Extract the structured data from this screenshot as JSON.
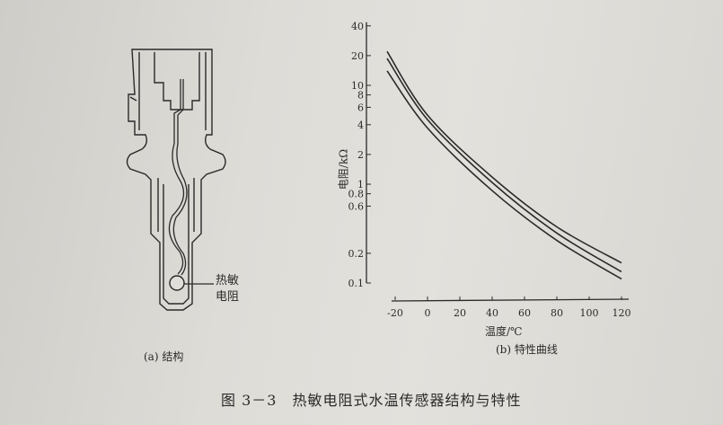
{
  "caption": "图 3－3　热敏电阻式水温传感器结构与特性",
  "structure": {
    "label": "(a) 结构",
    "thermistor_label_line1": "热敏",
    "thermistor_label_line2": "电阻"
  },
  "chart_label": "(b) 特性曲线",
  "chart_data": {
    "type": "line",
    "xlabel": "温度/℃",
    "ylabel": "电阻/kΩ",
    "y_scale": "log",
    "xlim": [
      -25,
      120
    ],
    "ylim": [
      0.1,
      40
    ],
    "x_ticks": [
      "-20",
      "0",
      "20",
      "40",
      "60",
      "80",
      "100",
      "120"
    ],
    "x_tick_values": [
      -20,
      0,
      20,
      40,
      60,
      80,
      100,
      120
    ],
    "y_ticks": [
      "40",
      "20",
      "10",
      "8",
      "6",
      "4",
      "2",
      "1",
      "0.8",
      "0.6",
      "0.2",
      "0.1"
    ],
    "y_tick_values": [
      40,
      20,
      10,
      8,
      6,
      4,
      2,
      1,
      0.8,
      0.6,
      0.2,
      0.1
    ],
    "grid": false,
    "series": [
      {
        "x": [
          -25,
          0,
          40,
          80,
          120
        ],
        "values": [
          22,
          5.0,
          1.18,
          0.37,
          0.16
        ]
      },
      {
        "x": [
          -25,
          0,
          40,
          80,
          120
        ],
        "values": [
          18.7,
          4.5,
          1.04,
          0.32,
          0.13
        ]
      },
      {
        "x": [
          -25,
          0,
          40,
          80,
          120
        ],
        "values": [
          14,
          3.7,
          0.86,
          0.27,
          0.11
        ]
      }
    ],
    "line_color": "#2a2a2a"
  }
}
